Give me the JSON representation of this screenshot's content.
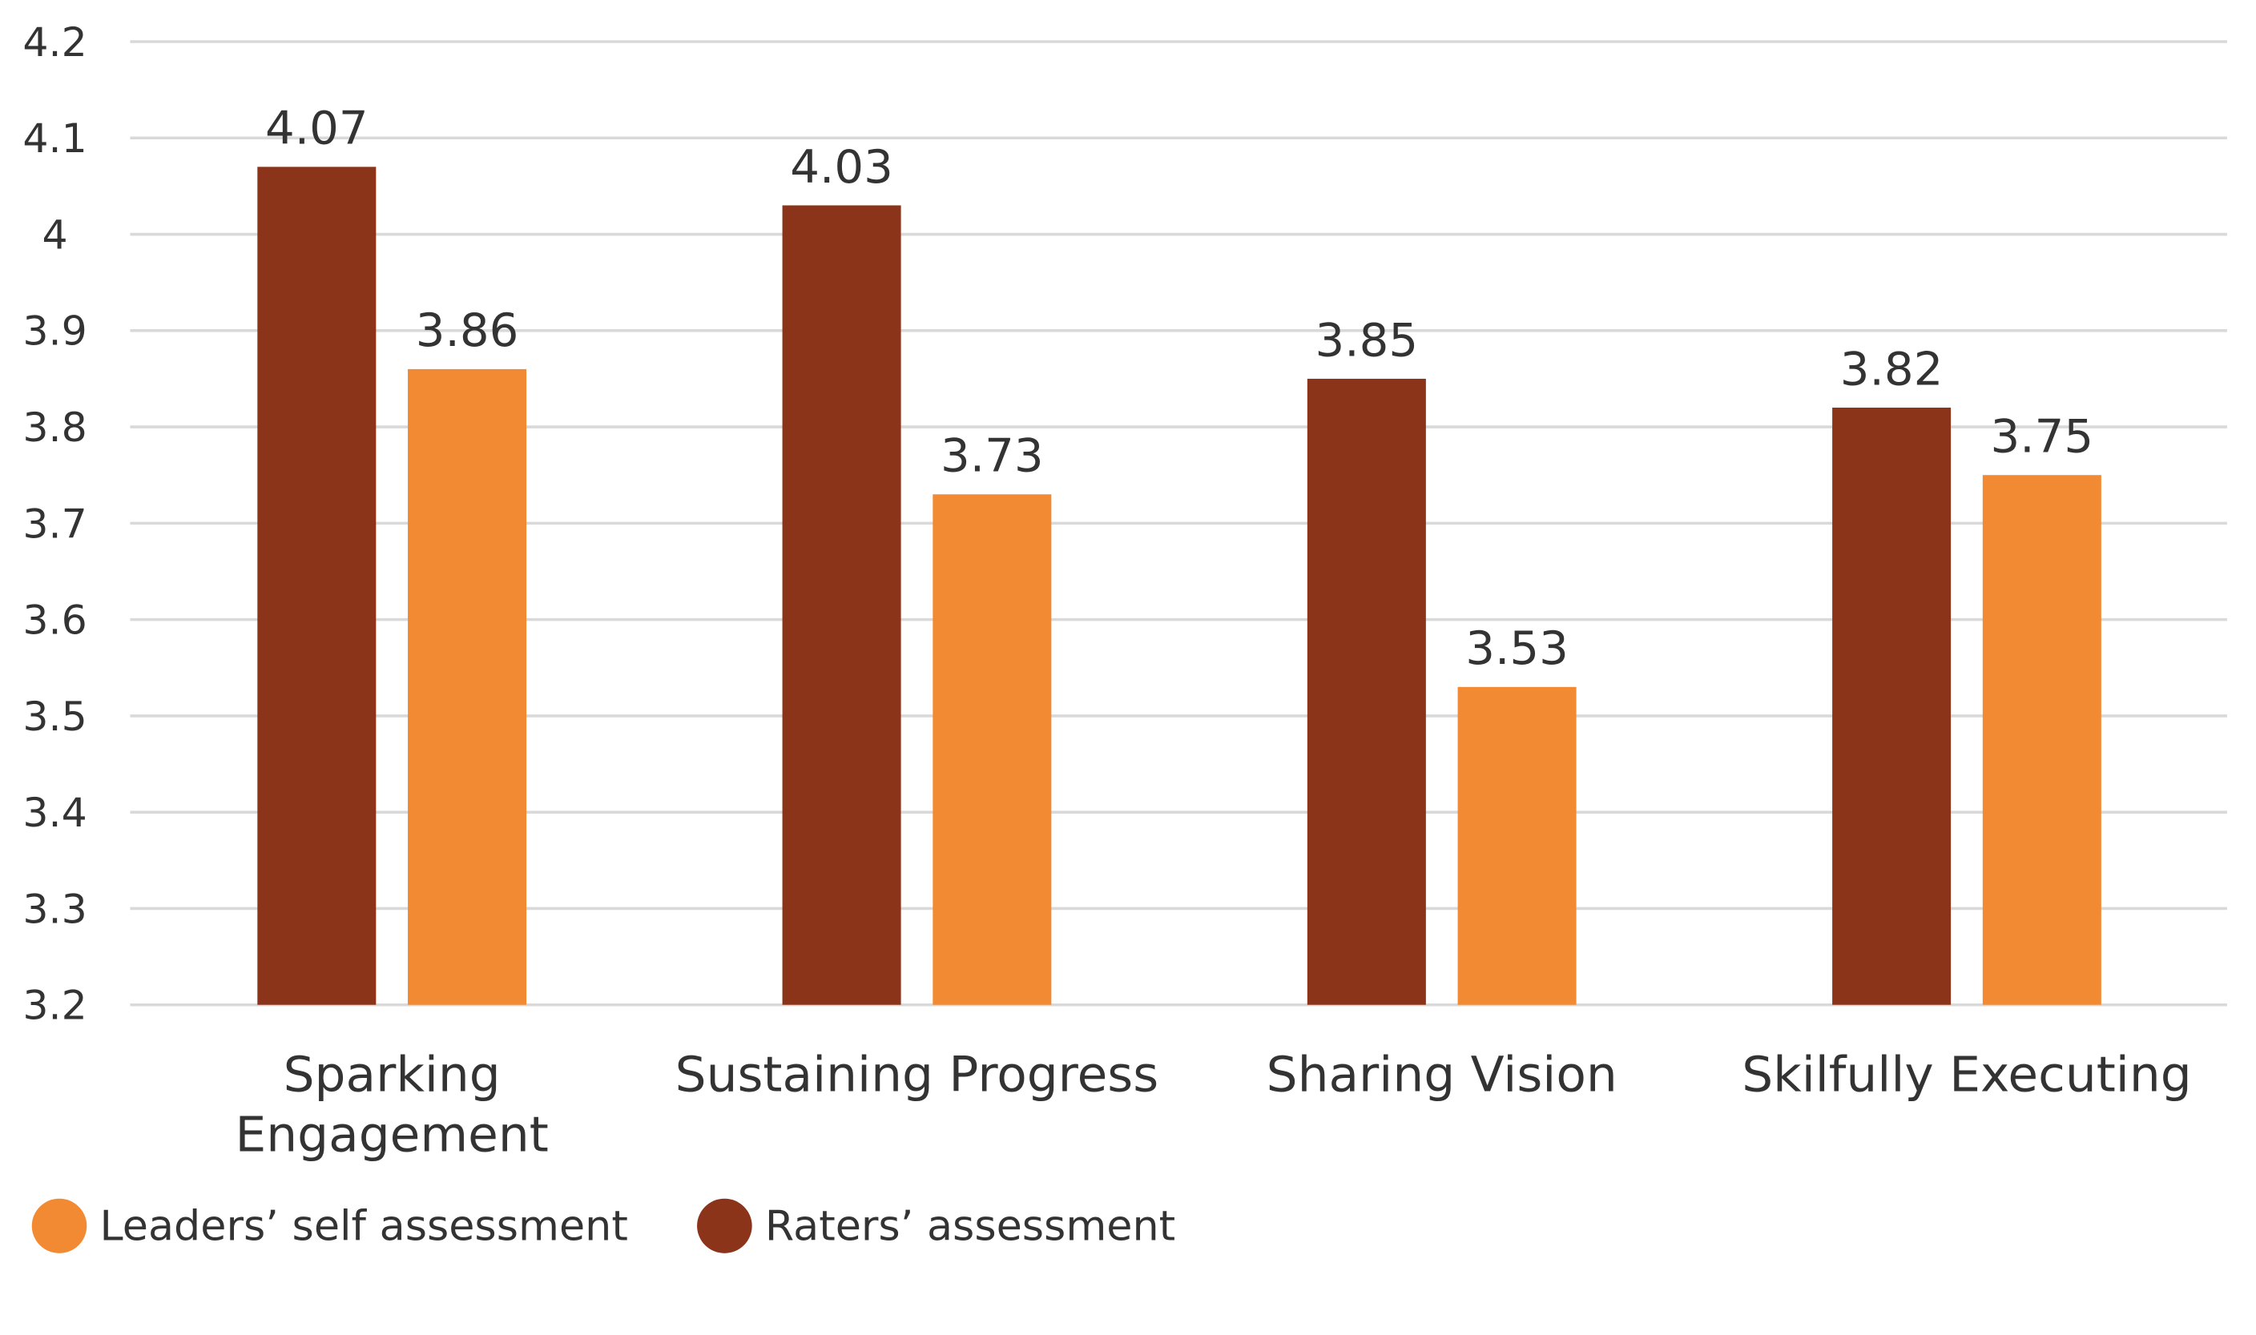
{
  "chart_data": {
    "type": "bar",
    "title": "",
    "xlabel": "",
    "ylabel": "",
    "ylim": [
      3.2,
      4.2
    ],
    "yticks": [
      "3.2",
      "3.3",
      "3.4",
      "3.5",
      "3.6",
      "3.7",
      "3.8",
      "3.9",
      "4",
      "4.1",
      "4.2"
    ],
    "grid": true,
    "legend_position": "bottom-left",
    "categories": [
      [
        "Sparking",
        "Engagement"
      ],
      [
        "Sustaining Progress"
      ],
      [
        "Sharing Vision"
      ],
      [
        "Skilfully Executing"
      ]
    ],
    "series": [
      {
        "name": "Raters’ assessment",
        "color": "#8B3419",
        "values": [
          4.07,
          4.03,
          3.85,
          3.82
        ],
        "labels": [
          "4.07",
          "4.03",
          "3.85",
          "3.82"
        ]
      },
      {
        "name": "Leaders’ self assessment",
        "color": "#F28A33",
        "values": [
          3.86,
          3.73,
          3.53,
          3.75
        ],
        "labels": [
          "3.86",
          "3.73",
          "3.53",
          "3.75"
        ]
      }
    ],
    "legend": [
      {
        "label": "Leaders’ self assessment",
        "color": "#F28A33"
      },
      {
        "label": "Raters’ assessment",
        "color": "#8B3419"
      }
    ]
  }
}
